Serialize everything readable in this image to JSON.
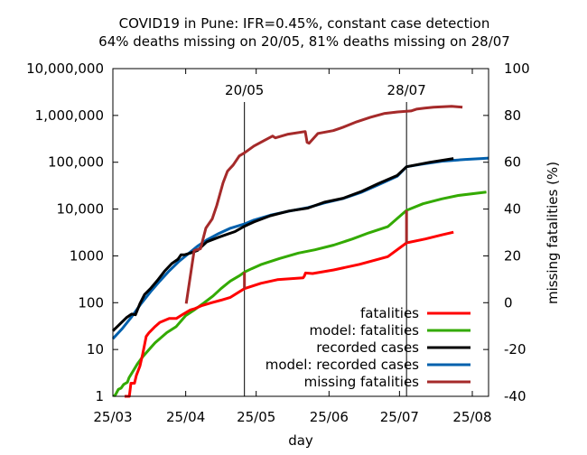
{
  "chart_data": {
    "type": "line",
    "title": "COVID19 in Pune: IFR=0.45%, constant case detection",
    "subtitle": "64% deaths missing on 20/05, 81% deaths missing on 28/07",
    "xlabel": "day",
    "ylabel": "",
    "y2label": "missing fatalities (%)",
    "x_unit": "days since 25/03",
    "xlim": [
      0,
      160
    ],
    "ylim": [
      1,
      10000000
    ],
    "yscale": "log",
    "y2lim": [
      -40,
      100
    ],
    "x_ticks": [
      {
        "day": 0,
        "label": "25/03"
      },
      {
        "day": 31,
        "label": "25/04"
      },
      {
        "day": 61,
        "label": "25/05"
      },
      {
        "day": 92,
        "label": "25/06"
      },
      {
        "day": 122,
        "label": "25/07"
      },
      {
        "day": 153,
        "label": "25/08"
      }
    ],
    "y_ticks": [
      {
        "value": 1,
        "label": "1"
      },
      {
        "value": 10,
        "label": "10"
      },
      {
        "value": 100,
        "label": "100"
      },
      {
        "value": 1000,
        "label": "1000"
      },
      {
        "value": 10000,
        "label": "10,000"
      },
      {
        "value": 100000,
        "label": "100,000"
      },
      {
        "value": 1000000,
        "label": "1,000,000"
      },
      {
        "value": 10000000,
        "label": "10,000,000"
      }
    ],
    "y2_ticks": [
      -40,
      -20,
      0,
      20,
      40,
      60,
      80,
      100
    ],
    "annotations": [
      {
        "day": 56,
        "label": "20/05"
      },
      {
        "day": 125,
        "label": "28/07"
      }
    ],
    "legend_position": "bottom-right",
    "series": [
      {
        "name": "fatalities",
        "color": "#ff0000",
        "axis": "y",
        "points": [
          [
            5,
            1
          ],
          [
            7,
            1
          ],
          [
            7.7,
            1.9
          ],
          [
            9.2,
            1.9
          ],
          [
            10,
            2.8
          ],
          [
            11.5,
            4.4
          ],
          [
            12.7,
            8
          ],
          [
            14.2,
            19
          ],
          [
            15.4,
            23
          ],
          [
            17.7,
            30
          ],
          [
            20,
            38
          ],
          [
            24,
            46
          ],
          [
            27,
            46
          ],
          [
            30,
            57
          ],
          [
            33,
            70
          ],
          [
            35,
            75
          ],
          [
            38,
            87
          ],
          [
            42,
            100
          ],
          [
            46,
            113
          ],
          [
            50,
            130
          ],
          [
            56,
            200
          ],
          [
            63,
            260
          ],
          [
            70,
            310
          ],
          [
            81,
            340
          ],
          [
            81.5,
            370
          ],
          [
            82,
            430
          ],
          [
            85,
            420
          ],
          [
            94,
            500
          ],
          [
            105,
            660
          ],
          [
            117,
            960
          ],
          [
            125,
            1900
          ],
          [
            133,
            2300
          ],
          [
            140,
            2800
          ],
          [
            145,
            3200
          ]
        ]
      },
      {
        "name": "model: fatalities",
        "color": "#33aa00",
        "axis": "y",
        "points": [
          [
            0.4,
            1
          ],
          [
            1.2,
            1.1
          ],
          [
            2.3,
            1.4
          ],
          [
            3.5,
            1.5
          ],
          [
            4.6,
            1.8
          ],
          [
            6.2,
            2
          ],
          [
            6.9,
            2.5
          ],
          [
            8.8,
            3.6
          ],
          [
            10.4,
            4.9
          ],
          [
            12.7,
            7
          ],
          [
            15.4,
            10
          ],
          [
            18,
            14
          ],
          [
            23,
            23
          ],
          [
            27,
            31
          ],
          [
            31,
            53
          ],
          [
            35,
            72
          ],
          [
            38.8,
            99
          ],
          [
            42.7,
            140
          ],
          [
            46,
            200
          ],
          [
            50,
            290
          ],
          [
            54,
            380
          ],
          [
            56,
            450
          ],
          [
            59,
            530
          ],
          [
            63,
            650
          ],
          [
            71,
            880
          ],
          [
            79,
            1150
          ],
          [
            86,
            1350
          ],
          [
            94,
            1700
          ],
          [
            102,
            2300
          ],
          [
            109,
            3100
          ],
          [
            117,
            4200
          ],
          [
            125,
            9400
          ],
          [
            132,
            13000
          ],
          [
            140,
            16500
          ],
          [
            147,
            19500
          ],
          [
            159,
            23000
          ]
        ]
      },
      {
        "name": "recorded cases",
        "color": "#000000",
        "axis": "y",
        "points": [
          [
            0,
            25
          ],
          [
            3,
            35
          ],
          [
            5.8,
            48
          ],
          [
            8,
            57
          ],
          [
            9.6,
            55
          ],
          [
            11.5,
            95
          ],
          [
            13.5,
            150
          ],
          [
            16,
            200
          ],
          [
            19,
            300
          ],
          [
            22,
            470
          ],
          [
            25,
            680
          ],
          [
            27.7,
            850
          ],
          [
            29,
            1050
          ],
          [
            30.4,
            1050
          ],
          [
            33,
            1150
          ],
          [
            36,
            1300
          ],
          [
            40,
            2000
          ],
          [
            45,
            2500
          ],
          [
            52,
            3300
          ],
          [
            56,
            4300
          ],
          [
            60,
            5300
          ],
          [
            67,
            7200
          ],
          [
            75,
            9100
          ],
          [
            83,
            10500
          ],
          [
            90,
            14000
          ],
          [
            98,
            17000
          ],
          [
            106,
            24000
          ],
          [
            113,
            35000
          ],
          [
            121,
            52000
          ],
          [
            125,
            80000
          ],
          [
            135,
            100000
          ],
          [
            145,
            120000
          ]
        ]
      },
      {
        "name": "model: recorded cases",
        "color": "#0060ad",
        "axis": "y",
        "points": [
          [
            0,
            17
          ],
          [
            4,
            28
          ],
          [
            8,
            50
          ],
          [
            12,
            95
          ],
          [
            16,
            170
          ],
          [
            20,
            290
          ],
          [
            24,
            480
          ],
          [
            28,
            750
          ],
          [
            32,
            1100
          ],
          [
            36,
            1600
          ],
          [
            40,
            2200
          ],
          [
            45,
            3000
          ],
          [
            50,
            3900
          ],
          [
            56,
            4800
          ],
          [
            60,
            5800
          ],
          [
            67,
            7400
          ],
          [
            75,
            9000
          ],
          [
            83,
            10700
          ],
          [
            90,
            13500
          ],
          [
            98,
            16800
          ],
          [
            106,
            23000
          ],
          [
            113,
            33000
          ],
          [
            121,
            50000
          ],
          [
            125,
            80000
          ],
          [
            132,
            92000
          ],
          [
            140,
            105000
          ],
          [
            150,
            115000
          ],
          [
            157,
            120000
          ],
          [
            160,
            123000
          ]
        ]
      },
      {
        "name": "missing fatalities",
        "color": "#a52a2a",
        "axis": "y2",
        "points": [
          [
            31.2,
            -0.4
          ],
          [
            34.6,
            22.3
          ],
          [
            37.3,
            23
          ],
          [
            39.6,
            31.9
          ],
          [
            42.3,
            35.8
          ],
          [
            44.2,
            41.5
          ],
          [
            46.9,
            51.2
          ],
          [
            48.8,
            56.2
          ],
          [
            51.2,
            58.8
          ],
          [
            53.8,
            62.7
          ],
          [
            56,
            64
          ],
          [
            60,
            66.9
          ],
          [
            64.2,
            69.2
          ],
          [
            68,
            71.2
          ],
          [
            69.2,
            70.4
          ],
          [
            74.6,
            72
          ],
          [
            81.9,
            73.1
          ],
          [
            82.7,
            68.5
          ],
          [
            83.5,
            68.1
          ],
          [
            87.3,
            72.3
          ],
          [
            93.8,
            73.5
          ],
          [
            96.9,
            74.6
          ],
          [
            98.1,
            75
          ],
          [
            103.8,
            77.3
          ],
          [
            109.6,
            79.2
          ],
          [
            115.4,
            80.8
          ],
          [
            121.2,
            81.5
          ],
          [
            126.9,
            81.9
          ],
          [
            129.2,
            82.7
          ],
          [
            132.7,
            83.1
          ],
          [
            136.5,
            83.5
          ],
          [
            144.2,
            83.9
          ],
          [
            148.8,
            83.5
          ]
        ]
      }
    ]
  }
}
